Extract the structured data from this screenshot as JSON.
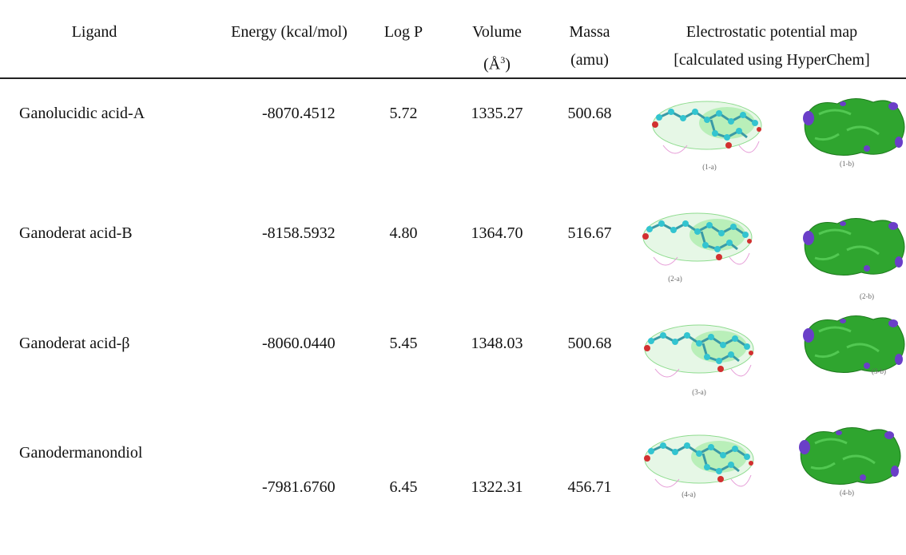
{
  "table": {
    "headers": [
      "Ligand",
      "Energy (kcal/mol)",
      "Log P",
      "Volume",
      "Massa",
      "Electrostatic potential map"
    ],
    "header_sub": {
      "volume": {
        "before": "(Å",
        "sup": "3",
        "after": ")"
      },
      "massa": "(amu)",
      "map": "[calculated using HyperChem]"
    },
    "rows": [
      [
        "Ganolucidic acid-A",
        "-8070.4512",
        "5.72",
        "1335.27",
        "500.68",
        "(1-a)",
        "(1-b)"
      ],
      [
        "Ganoderat acid-B",
        "-8158.5932",
        "4.80",
        "1364.70",
        "516.67",
        "(2-a)",
        "(2-b)"
      ],
      [
        "Ganoderat acid-β",
        "-8060.0440",
        "5.45",
        "1348.03",
        "500.68",
        "(3-a)",
        "(3-b)"
      ],
      [
        "Ganodermanondiol",
        "-7981.6760",
        "6.45",
        "1322.31",
        "456.71",
        "(4-a)",
        "(4-b)"
      ]
    ]
  }
}
